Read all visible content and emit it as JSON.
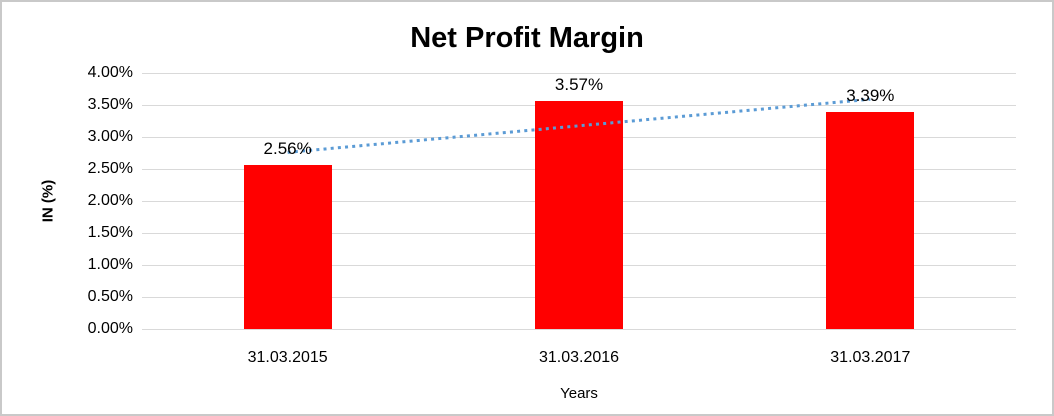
{
  "chart_data": {
    "type": "bar",
    "title": "Net Profit Margin",
    "xlabel": "Years",
    "ylabel": "IN (%)",
    "categories": [
      "31.03.2015",
      "31.03.2016",
      "31.03.2017"
    ],
    "values": [
      2.56,
      3.57,
      3.39
    ],
    "data_labels": [
      "2.56%",
      "3.57%",
      "3.39%"
    ],
    "bar_color": "#FF0000",
    "ylim": [
      0,
      4
    ],
    "ytick_step": 0.5,
    "yticks": [
      {
        "label": "0.00%",
        "value": 0.0
      },
      {
        "label": "0.50%",
        "value": 0.5
      },
      {
        "label": "1.00%",
        "value": 1.0
      },
      {
        "label": "1.50%",
        "value": 1.5
      },
      {
        "label": "2.00%",
        "value": 2.0
      },
      {
        "label": "2.50%",
        "value": 2.5
      },
      {
        "label": "3.00%",
        "value": 3.0
      },
      {
        "label": "3.50%",
        "value": 3.5
      },
      {
        "label": "4.00%",
        "value": 4.0
      }
    ],
    "grid": "horizontal",
    "gridline_color": "#D9D9D9",
    "legend": "none",
    "trendline": {
      "type": "linear",
      "style": "dotted",
      "color": "#5B9BD5",
      "start_value": 2.76,
      "end_value": 3.59
    }
  }
}
